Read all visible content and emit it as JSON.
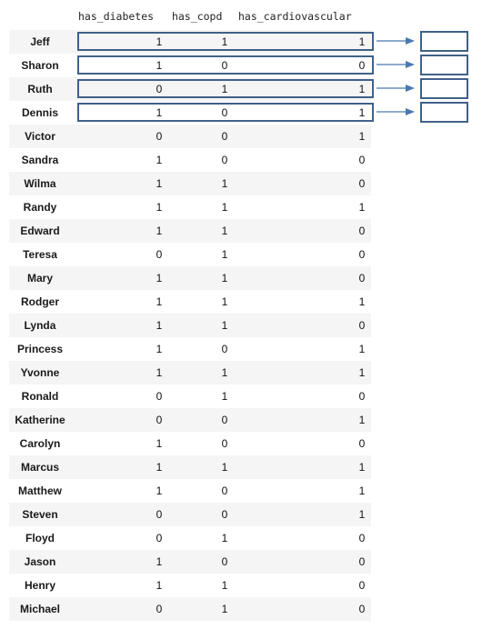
{
  "headers": {
    "has_diabetes": "has_diabetes",
    "has_copd": "has_copd",
    "has_cardiovascular": "has_cardiovascular"
  },
  "rows": [
    {
      "name": "Jeff",
      "has_diabetes": "1",
      "has_copd": "1",
      "has_cardiovascular": "1"
    },
    {
      "name": "Sharon",
      "has_diabetes": "1",
      "has_copd": "0",
      "has_cardiovascular": "0"
    },
    {
      "name": "Ruth",
      "has_diabetes": "0",
      "has_copd": "1",
      "has_cardiovascular": "1"
    },
    {
      "name": "Dennis",
      "has_diabetes": "1",
      "has_copd": "0",
      "has_cardiovascular": "1"
    },
    {
      "name": "Victor",
      "has_diabetes": "0",
      "has_copd": "0",
      "has_cardiovascular": "1"
    },
    {
      "name": "Sandra",
      "has_diabetes": "1",
      "has_copd": "0",
      "has_cardiovascular": "0"
    },
    {
      "name": "Wilma",
      "has_diabetes": "1",
      "has_copd": "1",
      "has_cardiovascular": "0"
    },
    {
      "name": "Randy",
      "has_diabetes": "1",
      "has_copd": "1",
      "has_cardiovascular": "1"
    },
    {
      "name": "Edward",
      "has_diabetes": "1",
      "has_copd": "1",
      "has_cardiovascular": "0"
    },
    {
      "name": "Teresa",
      "has_diabetes": "0",
      "has_copd": "1",
      "has_cardiovascular": "0"
    },
    {
      "name": "Mary",
      "has_diabetes": "1",
      "has_copd": "1",
      "has_cardiovascular": "0"
    },
    {
      "name": "Rodger",
      "has_diabetes": "1",
      "has_copd": "1",
      "has_cardiovascular": "1"
    },
    {
      "name": "Lynda",
      "has_diabetes": "1",
      "has_copd": "1",
      "has_cardiovascular": "0"
    },
    {
      "name": "Princess",
      "has_diabetes": "1",
      "has_copd": "0",
      "has_cardiovascular": "1"
    },
    {
      "name": "Yvonne",
      "has_diabetes": "1",
      "has_copd": "1",
      "has_cardiovascular": "1"
    },
    {
      "name": "Ronald",
      "has_diabetes": "0",
      "has_copd": "1",
      "has_cardiovascular": "0"
    },
    {
      "name": "Katherine",
      "has_diabetes": "0",
      "has_copd": "0",
      "has_cardiovascular": "1"
    },
    {
      "name": "Carolyn",
      "has_diabetes": "1",
      "has_copd": "0",
      "has_cardiovascular": "0"
    },
    {
      "name": "Marcus",
      "has_diabetes": "1",
      "has_copd": "1",
      "has_cardiovascular": "1"
    },
    {
      "name": "Matthew",
      "has_diabetes": "1",
      "has_copd": "0",
      "has_cardiovascular": "1"
    },
    {
      "name": "Steven",
      "has_diabetes": "0",
      "has_copd": "0",
      "has_cardiovascular": "1"
    },
    {
      "name": "Floyd",
      "has_diabetes": "0",
      "has_copd": "1",
      "has_cardiovascular": "0"
    },
    {
      "name": "Jason",
      "has_diabetes": "1",
      "has_copd": "0",
      "has_cardiovascular": "0"
    },
    {
      "name": "Henry",
      "has_diabetes": "1",
      "has_copd": "1",
      "has_cardiovascular": "0"
    },
    {
      "name": "Michael",
      "has_diabetes": "0",
      "has_copd": "1",
      "has_cardiovascular": "0"
    }
  ],
  "highlighted_rows": 4,
  "colors": {
    "highlight_border": "#3f6189",
    "arrow": "#4a78b0",
    "row_stripe": "#f5f5f5"
  }
}
